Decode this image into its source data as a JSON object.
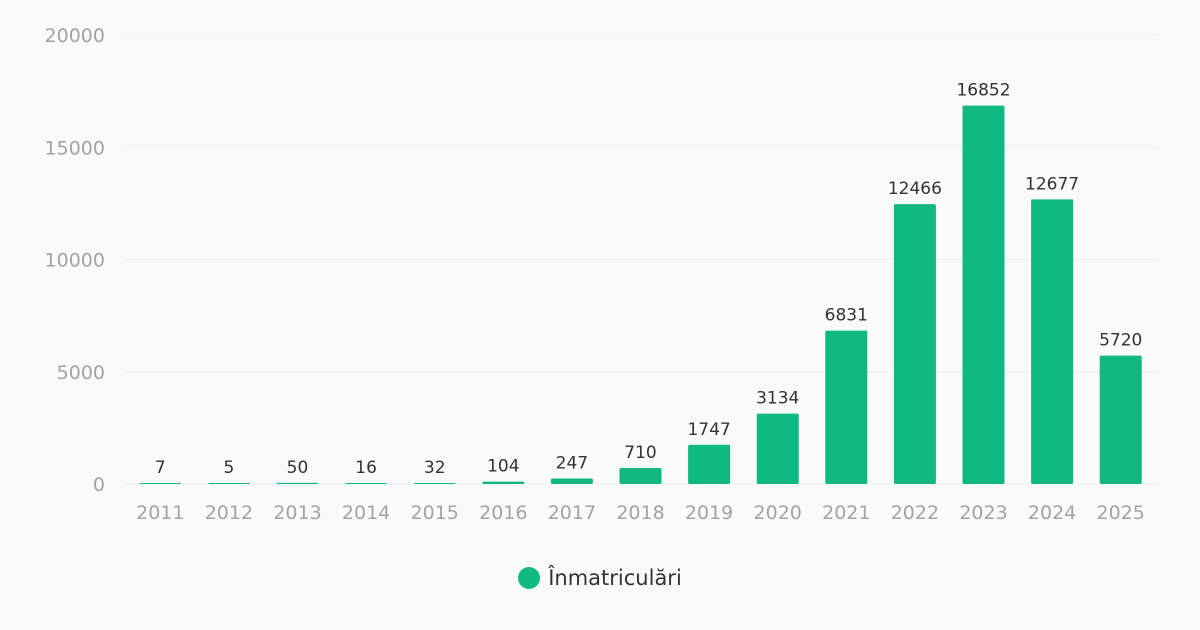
{
  "chart_data": {
    "type": "bar",
    "categories": [
      "2011",
      "2012",
      "2013",
      "2014",
      "2015",
      "2016",
      "2017",
      "2018",
      "2019",
      "2020",
      "2021",
      "2022",
      "2023",
      "2024",
      "2025"
    ],
    "series": [
      {
        "name": "Înmatriculări",
        "values": [
          7,
          5,
          50,
          16,
          32,
          104,
          247,
          710,
          1747,
          3134,
          6831,
          12466,
          16852,
          12677,
          5720
        ]
      }
    ],
    "ylim": [
      0,
      20000
    ],
    "yticks": [
      0,
      5000,
      10000,
      15000,
      20000
    ],
    "grid": true,
    "legend_position": "bottom-center",
    "data_labels": true,
    "colors": {
      "bar": "#10b981",
      "grid": "#eeeeee",
      "tick_text": "#a3a3a3",
      "label_text": "#333333"
    }
  },
  "legend": {
    "label": "Înmatriculări"
  }
}
